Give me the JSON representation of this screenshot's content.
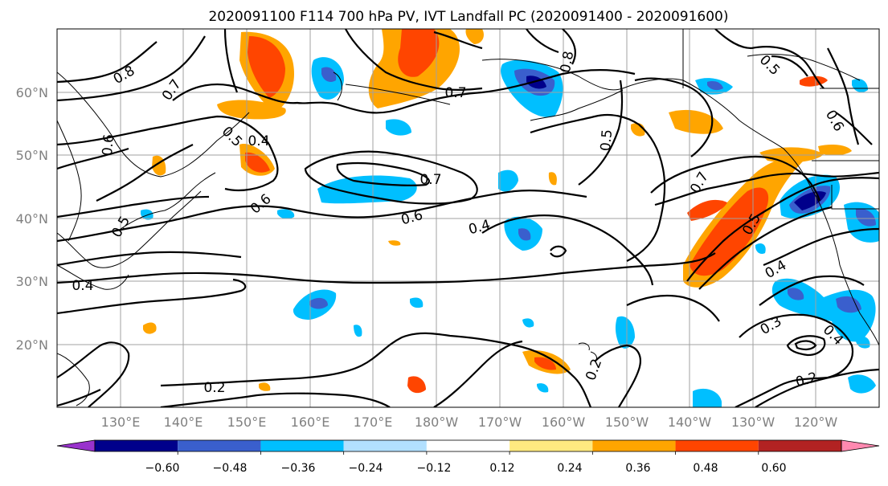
{
  "title": "2020091100 F114 700 hPa PV, IVT Landfall PC (2020091400 - 2020091600)",
  "map": {
    "lat_labels": [
      "60°N",
      "50°N",
      "40°N",
      "30°N",
      "20°N"
    ],
    "lon_labels": [
      "130°E",
      "140°E",
      "150°E",
      "160°E",
      "170°E",
      "180°W",
      "170°W",
      "160°W",
      "150°W",
      "140°W",
      "130°W",
      "120°W"
    ],
    "contour_labels": [
      "0.8",
      "0.7",
      "0.5",
      "0.4",
      "0.6",
      "0.5",
      "0.6",
      "0.7",
      "0.6",
      "0.4",
      "0.7",
      "0.4",
      "0.8",
      "0.5",
      "0.7",
      "0.5",
      "0.5",
      "0.6",
      "0.4",
      "0.3",
      "0.4",
      "0.2",
      "0.2",
      "0.2"
    ],
    "grid_color": "#a0a0a0",
    "contour_color": "#000000"
  },
  "colorbar": {
    "tick_labels": [
      "−0.60",
      "−0.48",
      "−0.36",
      "−0.24",
      "−0.12",
      "0.12",
      "0.24",
      "0.36",
      "0.48",
      "0.60"
    ],
    "colors": [
      "#9932CC",
      "#00008B",
      "#3A5FCD",
      "#00BFFF",
      "#B2E0FF",
      "#FFFFFF",
      "#FFE980",
      "#FFA500",
      "#FF4500",
      "#B22222",
      "#FF89B0"
    ]
  }
}
